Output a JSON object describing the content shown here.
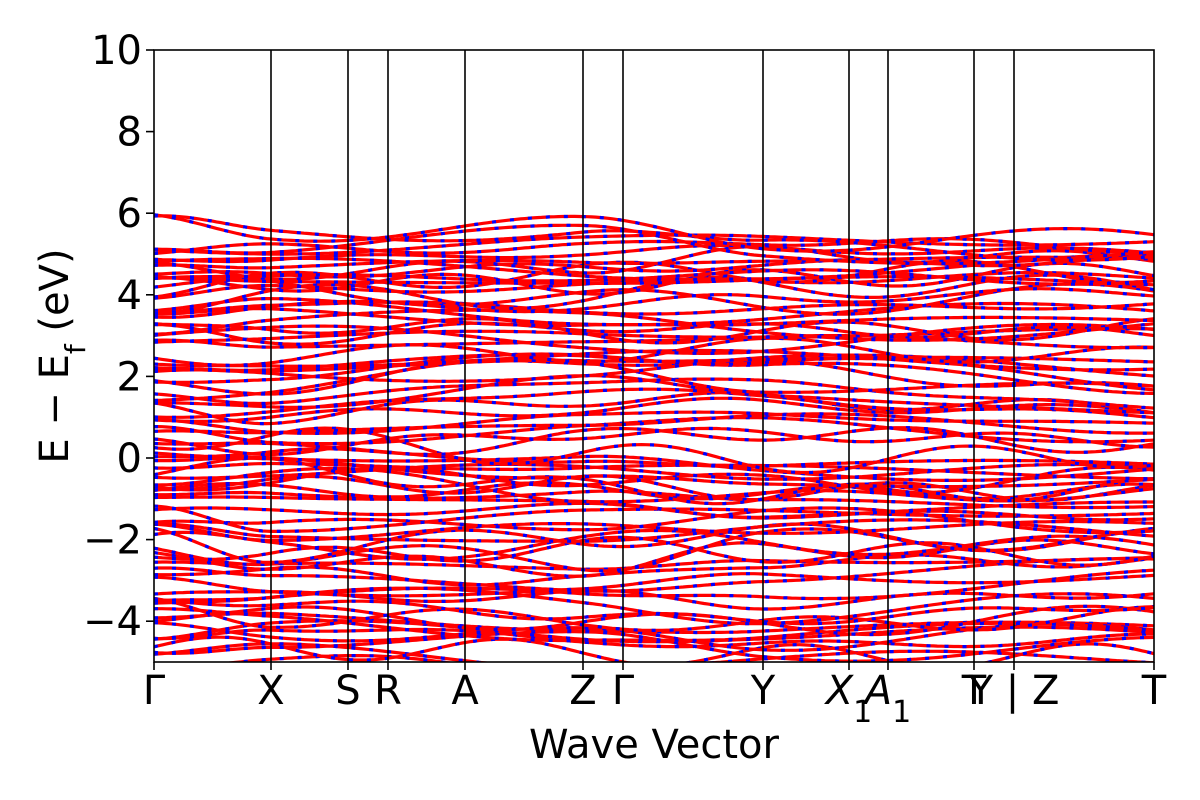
{
  "chart_data": {
    "type": "line",
    "chart_kind": "electronic band structure",
    "xlabel": "Wave Vector",
    "ylabel": "E − E",
    "ylabel_sub": "f",
    "ylabel_unit": " (eV)",
    "ylim": [
      -5,
      10
    ],
    "yticks": [
      -4,
      -2,
      0,
      2,
      4,
      6,
      8,
      10
    ],
    "ytick_labels": [
      "−4",
      "−2",
      "0",
      "2",
      "4",
      "6",
      "8",
      "10"
    ],
    "kpath_labels": [
      "Γ",
      "X",
      "S",
      "R",
      "A",
      "Z",
      "Γ",
      "Y",
      "X1",
      "A1",
      "T",
      "Y | Z",
      "T"
    ],
    "kpath_positions": [
      0.0,
      1.17,
      1.94,
      2.34,
      3.11,
      4.29,
      4.69,
      6.09,
      6.95,
      7.34,
      8.2,
      8.6,
      10.0
    ],
    "grid": false,
    "colors": {
      "spin_up": "#ff0000",
      "spin_down": "#0000ff",
      "frame": "#000000"
    },
    "series": [
      {
        "name": "",
        "style": "red solid with blue dashes overlaid (spin up / spin down coincide)",
        "bands_sample": [
          {
            "E_at_Gamma": -4.6,
            "E_at_X": -4.4,
            "E_at_Z": -4.6,
            "E_at_Y": -4.7,
            "E_at_T": -4.6
          },
          {
            "E_at_Gamma": -3.6,
            "E_at_X": -3.8,
            "E_at_Z": -3.9,
            "E_at_Y": -4.1,
            "E_at_T": -3.8
          },
          {
            "E_at_Gamma": -2.7,
            "E_at_X": -2.8,
            "E_at_Z": -2.9,
            "E_at_Y": -2.6,
            "E_at_T": -2.5
          },
          {
            "E_at_Gamma": -1.7,
            "E_at_X": -2.1,
            "E_at_Z": -1.8,
            "E_at_Y": -1.8,
            "E_at_T": -1.9
          },
          {
            "E_at_Gamma": -0.8,
            "E_at_X": -0.8,
            "E_at_Z": -0.7,
            "E_at_Y": -0.9,
            "E_at_T": -0.9
          },
          {
            "E_at_Gamma": 0.0,
            "E_at_X": 0.1,
            "E_at_Z": -0.3,
            "E_at_Y": -0.5,
            "E_at_T": -0.4
          },
          {
            "E_at_Gamma": 0.8,
            "E_at_X": 0.6,
            "E_at_Z": 0.9,
            "E_at_Y": 1.0,
            "E_at_T": 0.7
          },
          {
            "E_at_Gamma": 1.7,
            "E_at_X": 1.6,
            "E_at_Z": 2.2,
            "E_at_Y": 2.0,
            "E_at_T": 1.4
          },
          {
            "E_at_Gamma": 2.6,
            "E_at_X": 2.5,
            "E_at_Z": 2.7,
            "E_at_Y": 2.7,
            "E_at_T": 2.6
          },
          {
            "E_at_Gamma": 3.4,
            "E_at_X": 3.6,
            "E_at_Z": 3.4,
            "E_at_Y": 3.3,
            "E_at_T": 3.5
          },
          {
            "E_at_Gamma": 4.1,
            "E_at_X": 4.2,
            "E_at_Z": 4.3,
            "E_at_Y": 4.5,
            "E_at_T": 4.5
          },
          {
            "E_at_Gamma": 4.8,
            "E_at_X": 4.7,
            "E_at_Z": 4.8,
            "E_at_Y": 4.9,
            "E_at_T": 4.8
          },
          {
            "E_at_Gamma": 5.6,
            "E_at_X": 5.4,
            "E_at_Z": 5.6,
            "E_at_Y": 5.1,
            "E_at_T": 5.1
          }
        ]
      }
    ]
  }
}
